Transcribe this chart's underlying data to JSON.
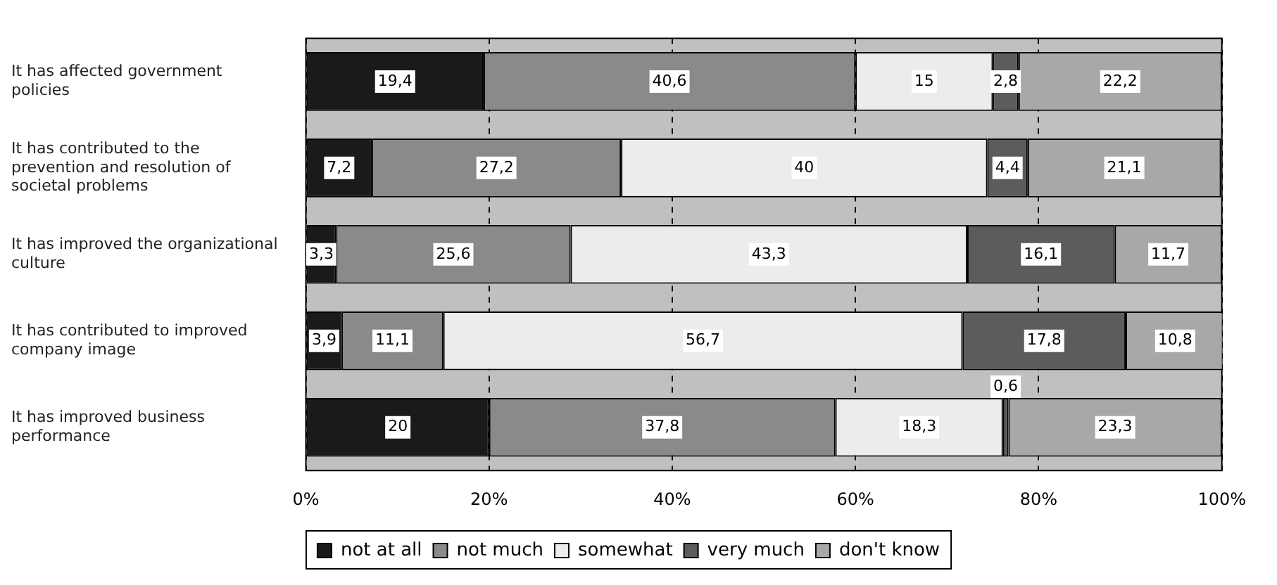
{
  "chart_data": {
    "type": "bar",
    "orientation": "horizontal",
    "stacked": true,
    "categories": [
      "It has affected government policies",
      "It has contributed to the prevention and resolution of societal problems",
      "It has improved the organizational culture",
      "It has contributed to improved company image",
      "It has improved business performance"
    ],
    "series": [
      {
        "name": "not at all",
        "color": "#1a1a1a",
        "values": [
          19.4,
          7.2,
          3.3,
          3.9,
          20
        ],
        "value_labels": [
          "19,4",
          "7,2",
          "3,3",
          "3,9",
          "20"
        ]
      },
      {
        "name": "not much",
        "color": "#8a8a8a",
        "values": [
          40.6,
          27.2,
          25.6,
          11.1,
          37.8
        ],
        "value_labels": [
          "40,6",
          "27,2",
          "25,6",
          "11,1",
          "37,8"
        ]
      },
      {
        "name": "somewhat",
        "color": "#ececec",
        "values": [
          15,
          40,
          43.3,
          56.7,
          18.3
        ],
        "value_labels": [
          "15",
          "40",
          "43,3",
          "56,7",
          "18,3"
        ]
      },
      {
        "name": "very much",
        "color": "#5c5c5c",
        "values": [
          2.8,
          4.4,
          16.1,
          17.8,
          0.6
        ],
        "value_labels": [
          "2,8",
          "4,4",
          "16,1",
          "17,8",
          "0,6"
        ]
      },
      {
        "name": "don't know",
        "color": "#a8a8a8",
        "values": [
          22.2,
          21.1,
          11.7,
          10.8,
          23.3
        ],
        "value_labels": [
          "22,2",
          "21,1",
          "11,7",
          "10,8",
          "23,3"
        ]
      }
    ],
    "xlim": [
      0,
      100
    ],
    "xticks": [
      {
        "value": 0,
        "label": "0%"
      },
      {
        "value": 20,
        "label": "20%"
      },
      {
        "value": 40,
        "label": "40%"
      },
      {
        "value": 60,
        "label": "60%"
      },
      {
        "value": 80,
        "label": "80%"
      },
      {
        "value": 100,
        "label": "100%"
      }
    ],
    "grid": "x",
    "legend": "bottom"
  }
}
